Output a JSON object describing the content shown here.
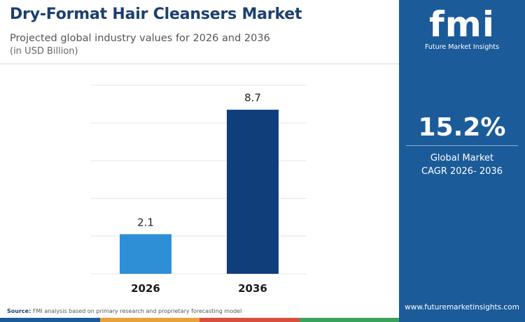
{
  "header": {
    "title": "Dry-Format Hair Cleansers Market",
    "subtitle": "Projected global industry values for 2026 and 2036",
    "unit": "(in USD Billion)"
  },
  "chart_data": {
    "type": "bar",
    "categories": [
      "2026",
      "2036"
    ],
    "values": [
      2.1,
      8.7
    ],
    "data_labels": [
      "2.1",
      "8.7"
    ],
    "colors": [
      "#2e8fd6",
      "#0f3e7a"
    ],
    "ylim": [
      0,
      10
    ],
    "grid": true
  },
  "footer": {
    "source_label": "Source:",
    "source_text": "FMI analysis based on primary research and proprietary forecasting model",
    "strip_colors": [
      "#1b5b99",
      "#e8a23c",
      "#d94f3d",
      "#3aa35b"
    ]
  },
  "sidebar": {
    "logo_letters": "fmi",
    "logo_text": "Future Market Insights",
    "cagr_value": "15.2%",
    "cagr_line1": "Global Market",
    "cagr_line2": "CAGR 2026- 2036",
    "website": "www.futuremarketinsights.com"
  }
}
